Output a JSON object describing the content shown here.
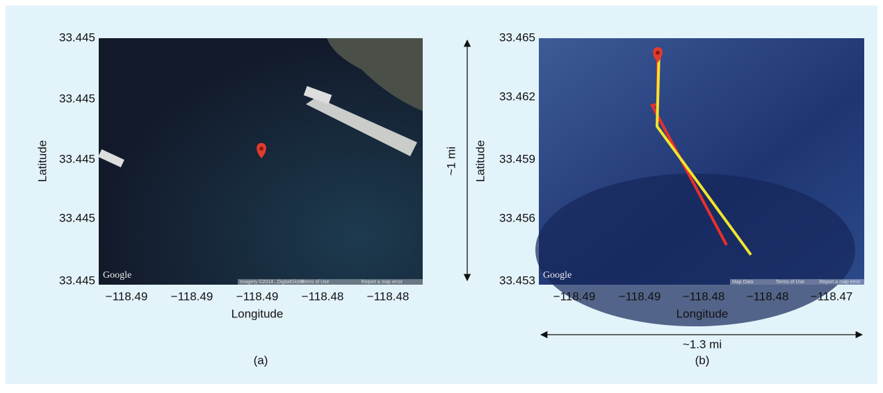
{
  "panel_a": {
    "y_ticks": [
      "33.445",
      "33.445",
      "33.445",
      "33.445",
      "33.445"
    ],
    "x_ticks": [
      "−118.49",
      "−118.49",
      "−118.49",
      "−118.48",
      "−118.48"
    ],
    "x_label": "Longitude",
    "y_label": "Latitude",
    "map_logo": "Google",
    "attribution": [
      "Imagery ©2014 , DigitalGlobe",
      "Terms of Use",
      "Report a map error"
    ],
    "caption": "(a)"
  },
  "panel_b": {
    "y_ticks": [
      "33.465",
      "33.462",
      "33.459",
      "33.456",
      "33.453"
    ],
    "x_ticks": [
      "−118.49",
      "−118.49",
      "−118.48",
      "−118.48",
      "−118.47"
    ],
    "x_label": "Longitude",
    "y_label": "Latitude",
    "map_logo": "Google",
    "attribution": [
      "Map Data",
      "Terms of Use",
      "Report a map error"
    ],
    "height_label": "~1 mi",
    "width_label": "~1.3 mi",
    "caption": "(b)"
  }
}
